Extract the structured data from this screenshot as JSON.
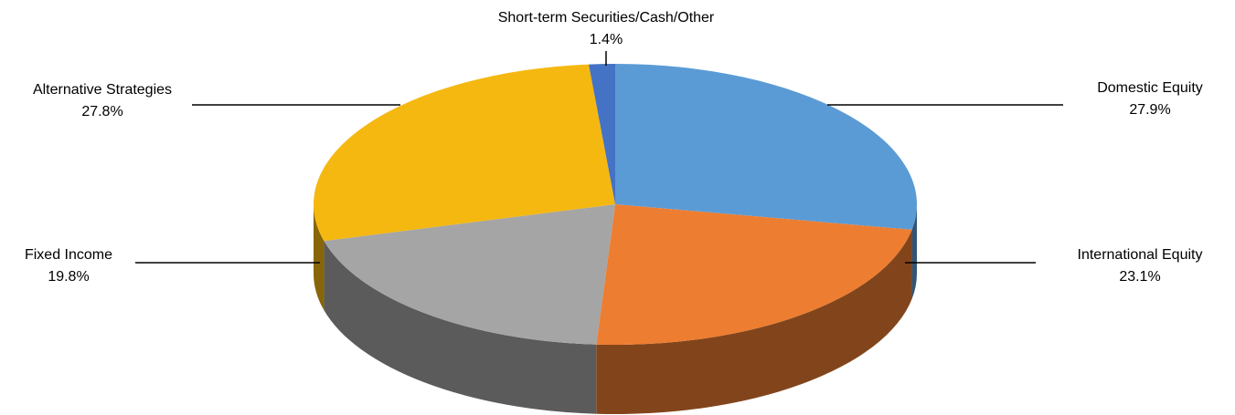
{
  "chart_data": {
    "type": "pie3d",
    "categories": [
      "Domestic Equity",
      "International Equity",
      "Fixed Income",
      "Alternative Strategies",
      "Short-term Securities/Cash/Other"
    ],
    "values": [
      27.9,
      23.1,
      19.8,
      27.8,
      1.4
    ],
    "value_labels": [
      "27.9%",
      "23.1%",
      "19.8%",
      "27.8%",
      "1.4%"
    ],
    "colors": [
      "#5b9bd5",
      "#ed7d31",
      "#a5a5a5",
      "#f5b811",
      "#4472c4"
    ]
  }
}
